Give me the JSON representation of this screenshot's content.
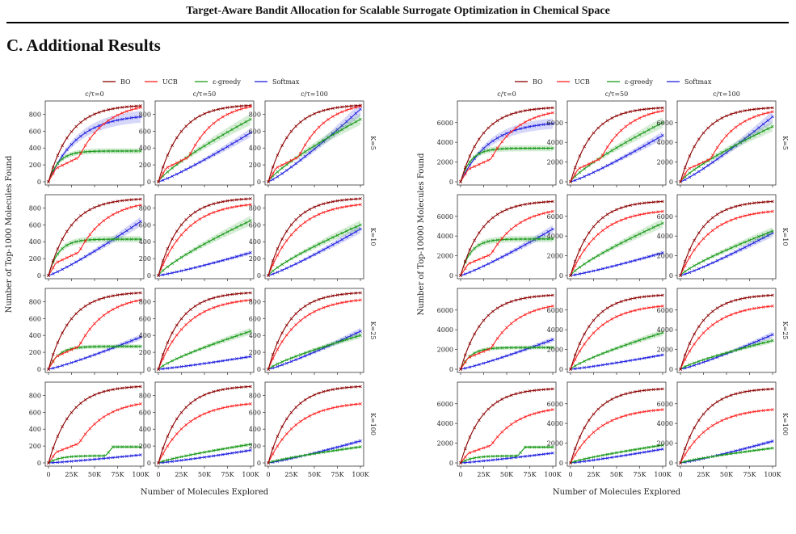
{
  "header": {
    "running_title": "Target-Aware Bandit Allocation for Scalable Surrogate Optimization in Chemical Space"
  },
  "section": {
    "title": "C. Additional Results"
  },
  "legend": [
    {
      "name": "BO",
      "color": "#8b0000"
    },
    {
      "name": "UCB",
      "color": "#ff2020"
    },
    {
      "name": "ε-greedy",
      "color": "#1a9a1a"
    },
    {
      "name": "Softmax",
      "color": "#2020e0"
    }
  ],
  "columns": [
    "c/τ=0",
    "c/τ=50",
    "c/τ=100"
  ],
  "rows": [
    "K=5",
    "K=10",
    "K=25",
    "K=100"
  ],
  "x_ticks": [
    "0",
    "25K",
    "50K",
    "75K",
    "100K"
  ],
  "chart_data": [
    {
      "type": "line",
      "xlabel": "Number of Molecules Explored",
      "ylabel": "Number of Top-1000 Molecules Found",
      "xlim": [
        0,
        100000
      ],
      "ylim": [
        0,
        900
      ],
      "yticks": [
        0,
        200,
        400,
        600,
        800
      ],
      "series_names": [
        "BO",
        "UCB",
        "ε-greedy",
        "Softmax"
      ],
      "final_values": [
        [
          [
            900,
            880,
            365,
            770
          ],
          [
            905,
            890,
            740,
            580
          ],
          [
            905,
            895,
            740,
            860
          ]
        ],
        [
          [
            905,
            835,
            430,
            640
          ],
          [
            910,
            840,
            650,
            270
          ],
          [
            910,
            840,
            600,
            550
          ]
        ],
        [
          [
            905,
            820,
            270,
            380
          ],
          [
            905,
            820,
            450,
            150
          ],
          [
            905,
            820,
            400,
            450
          ]
        ],
        [
          [
            905,
            700,
            190,
            95
          ],
          [
            905,
            700,
            220,
            150
          ],
          [
            905,
            700,
            190,
            260
          ]
        ]
      ]
    },
    {
      "type": "line",
      "xlabel": "Number of Molecules Explored",
      "ylabel": "Number of Top-10000 Molecules Found",
      "xlim": [
        0,
        100000
      ],
      "ylim": [
        0,
        7700
      ],
      "yticks": [
        0,
        2000,
        4000,
        6000
      ],
      "series_names": [
        "BO",
        "UCB",
        "ε-greedy",
        "Softmax"
      ],
      "final_values": [
        [
          [
            7500,
            7000,
            3400,
            5900
          ],
          [
            7500,
            7200,
            6000,
            4700
          ],
          [
            7500,
            7100,
            5600,
            6600
          ]
        ],
        [
          [
            7500,
            6500,
            3700,
            4700
          ],
          [
            7500,
            6500,
            5300,
            2300
          ],
          [
            7500,
            6500,
            4500,
            4300
          ]
        ],
        [
          [
            7500,
            6400,
            2200,
            3000
          ],
          [
            7500,
            6400,
            3700,
            1450
          ],
          [
            7500,
            6400,
            2900,
            3500
          ]
        ],
        [
          [
            7500,
            5400,
            1600,
            1000
          ],
          [
            7500,
            5400,
            1800,
            1400
          ],
          [
            7500,
            5400,
            1500,
            2200
          ]
        ]
      ]
    }
  ]
}
